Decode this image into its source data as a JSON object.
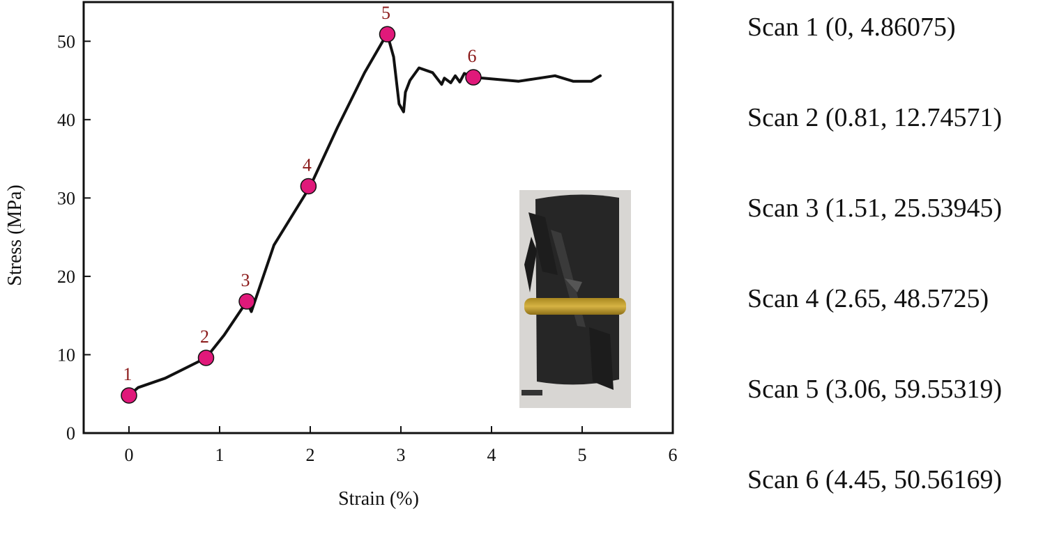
{
  "chart_data": {
    "type": "line",
    "xlabel": "Strain (%)",
    "ylabel": "Stress (MPa)",
    "xlim": [
      -0.5,
      6
    ],
    "ylim": [
      0,
      55
    ],
    "x_ticks": [
      0,
      1,
      2,
      3,
      4,
      5,
      6
    ],
    "y_ticks": [
      0,
      10,
      20,
      30,
      40,
      50
    ],
    "grid": false,
    "line_color": "#111111",
    "marker_color": "#e0197a",
    "label_color": "#8b1a1a",
    "series": [
      {
        "x": [
          0,
          0.1,
          0.4,
          0.85,
          1.05,
          1.3,
          1.35,
          1.6,
          2.0,
          2.3,
          2.6,
          2.8,
          2.85,
          2.92,
          2.98,
          3.03,
          3.05,
          3.1,
          3.2,
          3.35,
          3.45,
          3.48,
          3.55,
          3.6,
          3.65,
          3.7,
          3.8,
          4.3,
          4.7,
          4.9,
          5.1,
          5.2
        ],
        "y": [
          4.8,
          5.8,
          7.0,
          9.6,
          12.5,
          16.8,
          15.5,
          24.0,
          31.5,
          39.0,
          46.0,
          50.0,
          50.9,
          48.0,
          42.0,
          41.0,
          43.5,
          45.0,
          46.6,
          46.0,
          44.5,
          45.3,
          44.7,
          45.6,
          44.8,
          45.9,
          45.4,
          44.9,
          45.6,
          44.9,
          44.9,
          45.6
        ]
      }
    ],
    "points": [
      {
        "label": "1",
        "x": 0,
        "y": 4.8
      },
      {
        "label": "2",
        "x": 0.85,
        "y": 9.6
      },
      {
        "label": "3",
        "x": 1.3,
        "y": 16.8
      },
      {
        "label": "4",
        "x": 1.98,
        "y": 31.5
      },
      {
        "label": "5",
        "x": 2.85,
        "y": 50.9
      },
      {
        "label": "6",
        "x": 3.8,
        "y": 45.4
      }
    ]
  },
  "scan_list": [
    "Scan 1 (0, 4.86075)",
    "Scan 2 (0.81, 12.74571)",
    "Scan 3 (1.51, 25.53945)",
    "Scan 4 (2.65, 48.5725)",
    "Scan 5 (3.06, 59.55319)",
    "Scan 6 (4.45, 50.56169)"
  ]
}
